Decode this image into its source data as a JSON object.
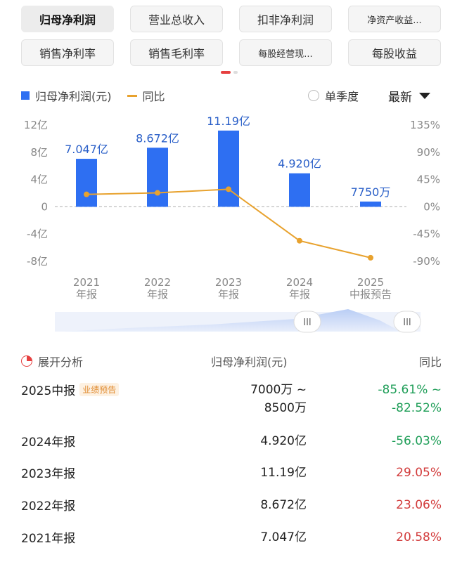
{
  "tabs": [
    {
      "label": "归母净利润",
      "active": true
    },
    {
      "label": "营业总收入"
    },
    {
      "label": "扣非净利润"
    },
    {
      "label": "净资产收益..."
    },
    {
      "label": "销售净利率"
    },
    {
      "label": "销售毛利率"
    },
    {
      "label": "每股经营现..."
    },
    {
      "label": "每股收益"
    }
  ],
  "legend": {
    "bar": "归母净利润(元)",
    "line": "同比"
  },
  "controls": {
    "single_quarter": "单季度",
    "sort": "最新"
  },
  "colors": {
    "bar": "#2e6ff2",
    "line": "#e8a22e",
    "up": "#d23b3b",
    "down": "#1f9e58"
  },
  "chart_data": {
    "type": "bar",
    "categories": [
      [
        "2021",
        "年报"
      ],
      [
        "2022",
        "年报"
      ],
      [
        "2023",
        "年报"
      ],
      [
        "2024",
        "年报"
      ],
      [
        "2025",
        "中报预告"
      ]
    ],
    "series": [
      {
        "name": "归母净利润(元)",
        "type": "bar",
        "axis": "left",
        "unit": "亿",
        "values": [
          7.047,
          8.672,
          11.19,
          4.92,
          0.775
        ]
      },
      {
        "name": "同比",
        "type": "line",
        "axis": "right",
        "unit": "%",
        "values": [
          20.58,
          23.06,
          29.05,
          -56.03,
          -84.07
        ]
      }
    ],
    "data_labels": [
      "7.047亿",
      "8.672亿",
      "11.19亿",
      "4.920亿",
      "7750万"
    ],
    "left_axis": {
      "ticks": [
        12,
        8,
        4,
        0,
        -4,
        -8
      ],
      "tick_labels": [
        "12亿",
        "8亿",
        "4亿",
        "0",
        "-4亿",
        "-8亿"
      ],
      "range": [
        -8,
        12
      ]
    },
    "right_axis": {
      "ticks": [
        135,
        90,
        45,
        0,
        -45,
        -90
      ],
      "tick_labels": [
        "135%",
        "90%",
        "45%",
        "0%",
        "-45%",
        "-90%"
      ],
      "range": [
        -90,
        135
      ]
    },
    "grid": "zero-line dashed"
  },
  "table": {
    "header": {
      "period": "展开分析",
      "value": "归母净利润(元)",
      "yoy": "同比"
    },
    "rows": [
      {
        "period": "2025中报",
        "badge": "业绩预告",
        "value": "7000万 ~",
        "value2": "8500万",
        "yoy": "-85.61% ~",
        "yoy2": "-82.52%",
        "dir": "down"
      },
      {
        "period": "2024年报",
        "value": "4.920亿",
        "yoy": "-56.03%",
        "dir": "down"
      },
      {
        "period": "2023年报",
        "value": "11.19亿",
        "yoy": "29.05%",
        "dir": "up"
      },
      {
        "period": "2022年报",
        "value": "8.672亿",
        "yoy": "23.06%",
        "dir": "up"
      },
      {
        "period": "2021年报",
        "value": "7.047亿",
        "yoy": "20.58%",
        "dir": "up"
      }
    ]
  }
}
